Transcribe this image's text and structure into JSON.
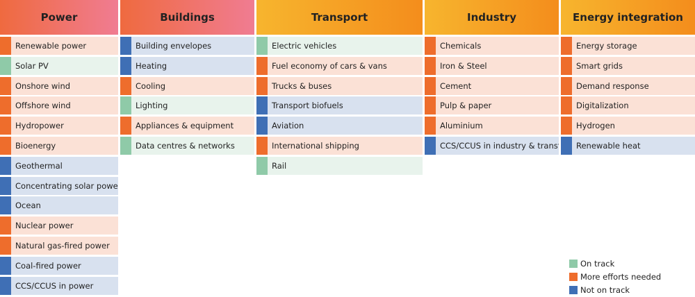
{
  "colors": {
    "on_track": "#8fcaa8",
    "more_efforts": "#ee6d2c",
    "not_on_track": "#3f6fb5"
  },
  "columns": [
    {
      "title": "Power",
      "header_gradient": [
        "#ef6a3f",
        "#f07c92"
      ],
      "items": [
        {
          "label": "Renewable power",
          "status": "more_efforts"
        },
        {
          "label": "Solar PV",
          "status": "on_track"
        },
        {
          "label": "Onshore wind",
          "status": "more_efforts"
        },
        {
          "label": "Offshore wind",
          "status": "more_efforts"
        },
        {
          "label": "Hydropower",
          "status": "more_efforts"
        },
        {
          "label": "Bioenergy",
          "status": "more_efforts"
        },
        {
          "label": "Geothermal",
          "status": "not_on_track"
        },
        {
          "label": "Concentrating solar power",
          "status": "not_on_track"
        },
        {
          "label": "Ocean",
          "status": "not_on_track"
        },
        {
          "label": "Nuclear power",
          "status": "more_efforts"
        },
        {
          "label": "Natural gas-fired power",
          "status": "more_efforts"
        },
        {
          "label": "Coal-fired power",
          "status": "not_on_track"
        },
        {
          "label": "CCS/CCUS in power",
          "status": "not_on_track"
        }
      ]
    },
    {
      "title": "Buildings",
      "header_gradient": [
        "#ef6a3f",
        "#f07c92"
      ],
      "items": [
        {
          "label": "Building envelopes",
          "status": "not_on_track"
        },
        {
          "label": "Heating",
          "status": "not_on_track"
        },
        {
          "label": "Cooling",
          "status": "more_efforts"
        },
        {
          "label": "Lighting",
          "status": "on_track"
        },
        {
          "label": "Appliances & equipment",
          "status": "more_efforts"
        },
        {
          "label": "Data centres & networks",
          "status": "on_track"
        }
      ]
    },
    {
      "title": "Transport",
      "header_gradient": [
        "#f7b52e",
        "#f48d1c"
      ],
      "items": [
        {
          "label": "Electric vehicles",
          "status": "on_track"
        },
        {
          "label": "Fuel economy of cars & vans",
          "status": "more_efforts"
        },
        {
          "label": "Trucks & buses",
          "status": "more_efforts"
        },
        {
          "label": "Transport biofuels",
          "status": "not_on_track"
        },
        {
          "label": "Aviation",
          "status": "not_on_track"
        },
        {
          "label": "International shipping",
          "status": "more_efforts"
        },
        {
          "label": "Rail",
          "status": "on_track"
        }
      ]
    },
    {
      "title": "Industry",
      "header_gradient": [
        "#f7b52e",
        "#f48d1c"
      ],
      "items": [
        {
          "label": "Chemicals",
          "status": "more_efforts"
        },
        {
          "label": "Iron & Steel",
          "status": "more_efforts"
        },
        {
          "label": "Cement",
          "status": "more_efforts"
        },
        {
          "label": "Pulp & paper",
          "status": "more_efforts"
        },
        {
          "label": "Aluminium",
          "status": "more_efforts"
        },
        {
          "label": "CCS/CCUS in industry & transf.",
          "status": "not_on_track"
        }
      ]
    },
    {
      "title": "Energy integration",
      "header_gradient": [
        "#f7b52e",
        "#f48d1c"
      ],
      "items": [
        {
          "label": "Energy storage",
          "status": "more_efforts"
        },
        {
          "label": "Smart grids",
          "status": "more_efforts"
        },
        {
          "label": "Demand response",
          "status": "more_efforts"
        },
        {
          "label": "Digitalization",
          "status": "more_efforts"
        },
        {
          "label": "Hydrogen",
          "status": "more_efforts"
        },
        {
          "label": "Renewable heat",
          "status": "not_on_track"
        }
      ]
    }
  ],
  "legend": [
    {
      "label": "On track",
      "status": "on_track"
    },
    {
      "label": "More efforts needed",
      "status": "more_efforts"
    },
    {
      "label": "Not on track",
      "status": "not_on_track"
    }
  ]
}
